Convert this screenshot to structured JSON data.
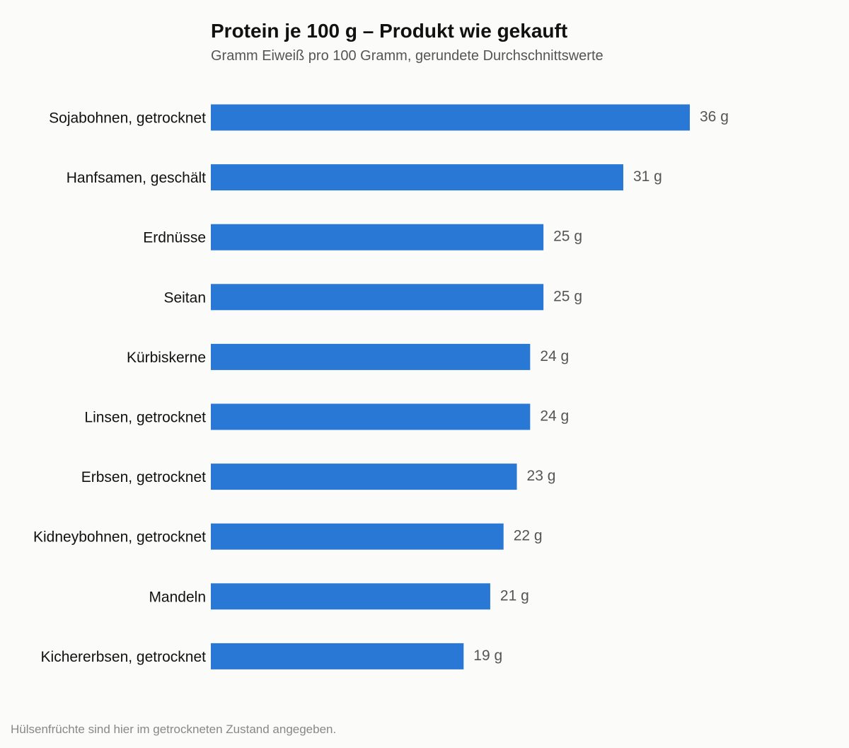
{
  "title": "Protein je 100 g – Produkt wie gekauft",
  "subtitle": "Gramm Eiweiß pro 100 Gramm, gerundete Durchschnittswerte",
  "footnote": "Hülsenfrüchte sind hier im getrockneten Zustand angegeben.",
  "colors": {
    "bar": "#2a78d6",
    "category_label": "#111111",
    "value_label": "#555555",
    "background": "#fbfbf9"
  },
  "chart_data": {
    "type": "bar",
    "orientation": "horizontal",
    "categories": [
      "Sojabohnen, getrocknet",
      "Hanfsamen, geschält",
      "Erdnüsse",
      "Seitan",
      "Kürbiskerne",
      "Linsen, getrocknet",
      "Erbsen, getrocknet",
      "Kidneybohnen, getrocknet",
      "Mandeln",
      "Kichererbsen, getrocknet"
    ],
    "values": [
      36,
      31,
      25,
      25,
      24,
      24,
      23,
      22,
      21,
      19
    ],
    "value_labels": [
      "36 g",
      "31 g",
      "25 g",
      "25 g",
      "24 g",
      "24 g",
      "23 g",
      "22 g",
      "21 g",
      "19 g"
    ],
    "unit": "g",
    "xlim": [
      0,
      36
    ],
    "grid": false,
    "axes_visible": false
  }
}
